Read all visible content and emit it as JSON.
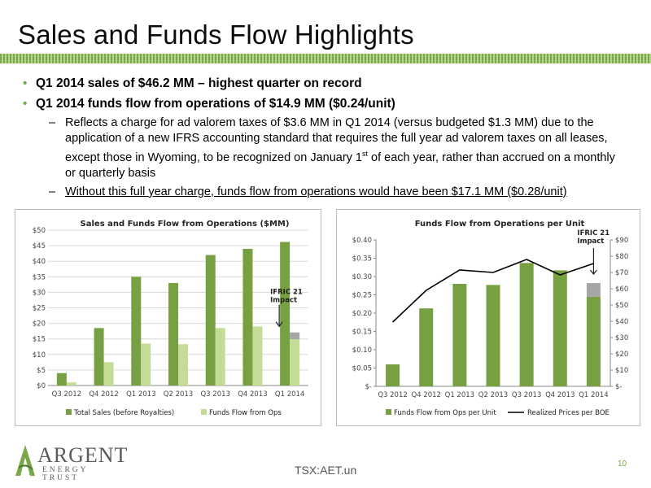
{
  "slide": {
    "title": "Sales and Funds Flow Highlights",
    "bullets": [
      {
        "text": "Q1 2014 sales of $46.2 MM – highest quarter on record"
      },
      {
        "text": "Q1 2014 funds flow from operations of $14.9 MM ($0.24/unit)"
      }
    ],
    "sub1_pre": "Reflects a charge for ad valorem taxes of $3.6 MM in Q1 2014 (versus budgeted $1.3 MM) due to the application of a new IFRS accounting standard that requires the full year ad valorem taxes on all leases, except those in Wyoming, to be recognized on January 1",
    "sub1_sup": "st",
    "sub1_post": " of each year, rather than accrued on a monthly or quarterly basis",
    "sub2": "Without this full year charge, funds flow from operations would have been $17.1 MM ($0.28/unit)",
    "dash": "–",
    "bullet_glyph": "•"
  },
  "footer": {
    "logo_name": "ARGENT",
    "logo_sub": "ENERGY TRUST",
    "ticker": "TSX:AET.un",
    "page": "10"
  },
  "colors": {
    "dark_green": "#76a041",
    "light_green": "#c3dd97",
    "gray": "#a6a6a6",
    "line": "#000000"
  },
  "chart_data": [
    {
      "type": "bar",
      "title": "Sales and Funds Flow from Operations ($MM)",
      "categories": [
        "Q3 2012",
        "Q4 2012",
        "Q1 2013",
        "Q2 2013",
        "Q3 2013",
        "Q4 2013",
        "Q1 2014"
      ],
      "series": [
        {
          "name": "Total Sales (before Royalties)",
          "values": [
            4,
            18.5,
            35,
            33,
            42,
            44,
            46.2
          ]
        },
        {
          "name": "Funds Flow from Ops",
          "values": [
            1,
            7.5,
            13.5,
            13.3,
            18.5,
            19,
            14.9
          ]
        }
      ],
      "stacked_extra": {
        "category": "Q1 2014",
        "value": 2.2
      },
      "y_ticks": [
        "$0",
        "$5",
        "$10",
        "$15",
        "$20",
        "$25",
        "$30",
        "$35",
        "$40",
        "$45",
        "$50"
      ],
      "ylim": [
        0,
        50
      ],
      "annotation": "IFRIC 21 Impact",
      "legend_position": "bottom",
      "grid": true
    },
    {
      "type": "bar",
      "title": "Funds Flow from Operations per Unit",
      "categories": [
        "Q3 2012",
        "Q4 2012",
        "Q1 2013",
        "Q2 2013",
        "Q3 2013",
        "Q4 2013",
        "Q1 2014"
      ],
      "series": [
        {
          "name": "Funds Flow from Ops per Unit",
          "type": "bar",
          "axis": "left",
          "values": [
            0.06,
            0.213,
            0.28,
            0.277,
            0.337,
            0.317,
            0.245
          ]
        },
        {
          "name": "Realized Prices per BOE",
          "type": "line",
          "axis": "right",
          "values": [
            39.5,
            59,
            71.5,
            70,
            78,
            68.5,
            75.5
          ]
        }
      ],
      "stacked_extra": {
        "category": "Q1 2014",
        "value": 0.037
      },
      "y_ticks": [
        "$-",
        "$0.05",
        "$0.10",
        "$0.15",
        "$0.20",
        "$0.25",
        "$0.30",
        "$0.35",
        "$0.40"
      ],
      "ylim": [
        0,
        0.4
      ],
      "y2_ticks": [
        "$-",
        "$10",
        "$20",
        "$30",
        "$40",
        "$50",
        "$60",
        "$70",
        "$80",
        "$90"
      ],
      "y2lim": [
        0,
        90
      ],
      "annotation": "IFRIC 21 Impact",
      "legend_position": "bottom",
      "grid": false
    }
  ]
}
